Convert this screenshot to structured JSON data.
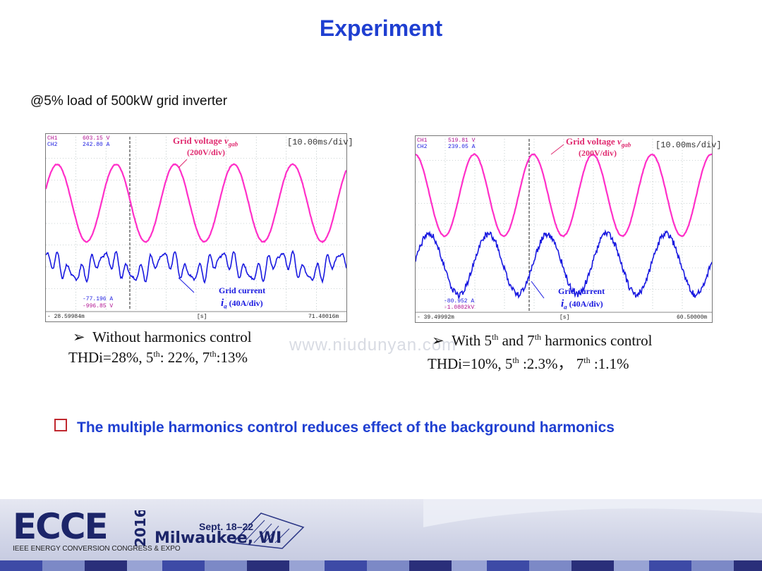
{
  "title": "Experiment",
  "subtitle": "@5% load of 500kW grid inverter",
  "watermark": "www.niudunyan.com",
  "colors": {
    "title_blue": "#1f3fd1",
    "voltage": "#ff2fc8",
    "current": "#1a1ae0",
    "bullet_box": "#c0282f"
  },
  "scope_left": {
    "ch1_label": "CH1",
    "ch2_label": "CH2",
    "ch1_value": "603.15 V",
    "ch2_value": "242.80 A",
    "timebase": "[10.00ms/div]",
    "voltage_label": "Grid voltage",
    "voltage_symbol": "v",
    "voltage_sub": "gab",
    "voltage_scale": "(200V/div)",
    "current_label": "Grid current",
    "current_symbol": "i",
    "current_sub": "a",
    "current_scale": " (40A/div)",
    "cursor_v1": "-77.196 A",
    "cursor_v2": "-996.85 V",
    "axis_left": "- 28.59984m",
    "axis_unit": "[s]",
    "axis_right": "71.40016m"
  },
  "scope_right": {
    "ch1_label": "CH1",
    "ch2_label": "CH2",
    "ch1_value": "519.81 V",
    "ch2_value": "239.05 A",
    "timebase": "[10.00ms/div]",
    "voltage_label": "Grid voltage",
    "voltage_symbol": "v",
    "voltage_sub": "gab",
    "voltage_scale": "(200V/div)",
    "current_label": "Grid current",
    "current_symbol": "i",
    "current_sub": "a",
    "current_scale": " (40A/div)",
    "cursor_v1": "-80.952 A",
    "cursor_v2": "-1.0802kV",
    "axis_left": "- 39.49992m",
    "axis_unit": "[s]",
    "axis_right": "60.50000m"
  },
  "caption_left": {
    "line1": "Without harmonics control",
    "line2_a": "THDi=28%, 5",
    "line2_sup1": "th",
    "line2_b": ": 22%, 7",
    "line2_sup2": "th",
    "line2_c": ":13%"
  },
  "caption_right": {
    "line1_a": "With 5",
    "line1_sup1": "th",
    "line1_b": " and 7",
    "line1_sup2": "th",
    "line1_c": "  harmonics control",
    "line2_a": "THDi=10%,  5",
    "line2_sup1": "th",
    "line2_b": " :2.3%，  7",
    "line2_sup2": "th",
    "line2_c": " :1.1%"
  },
  "conclusion": "The multiple harmonics control reduces effect of the background harmonics",
  "footer": {
    "logo": "ECCE",
    "year": "2016",
    "org": "IEEE ENERGY CONVERSION CONGRESS & EXPO",
    "dates": "Sept. 18–22",
    "city": "Milwaukee, WI"
  }
}
